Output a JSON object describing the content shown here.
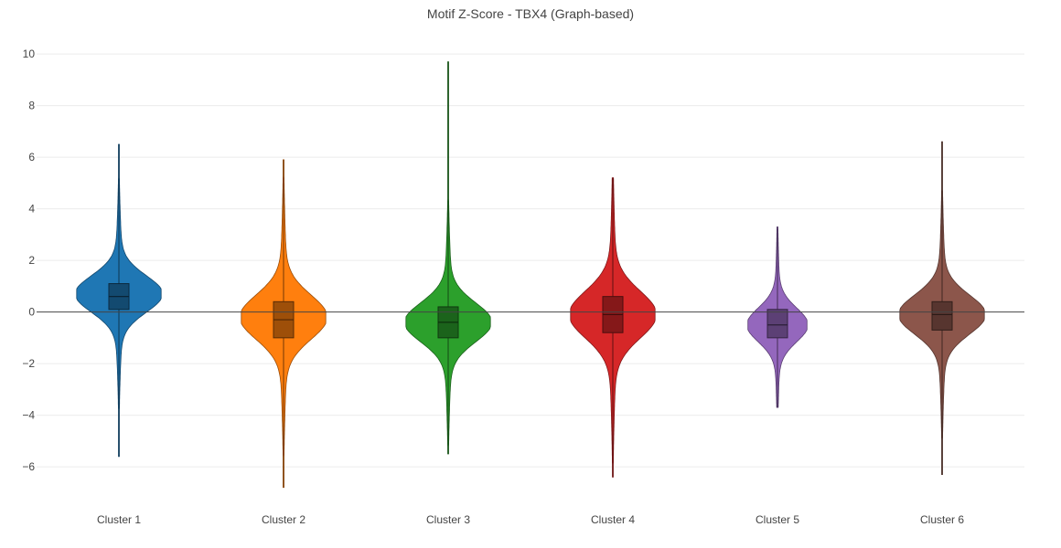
{
  "chart_data": {
    "type": "violin",
    "title": "Motif Z-Score - TBX4 (Graph-based)",
    "xlabel": "",
    "ylabel": "",
    "ylim": [
      -7.2,
      10.5
    ],
    "yticks": [
      -6,
      -4,
      -2,
      0,
      2,
      4,
      6,
      8,
      10
    ],
    "grid": true,
    "categories": [
      "Cluster 1",
      "Cluster 2",
      "Cluster 3",
      "Cluster 4",
      "Cluster 5",
      "Cluster 6"
    ],
    "series": [
      {
        "color": "#1f77b4",
        "min": -5.6,
        "q1": 0.1,
        "median": 0.6,
        "q3": 1.1,
        "max": 6.5,
        "mode": 0.7,
        "spread": 0.7,
        "width_scale": 1.0
      },
      {
        "color": "#ff7f0e",
        "min": -6.8,
        "q1": -1.0,
        "median": -0.3,
        "q3": 0.4,
        "max": 5.9,
        "mode": -0.2,
        "spread": 0.85,
        "width_scale": 1.0
      },
      {
        "color": "#2ca02c",
        "min": -5.5,
        "q1": -1.0,
        "median": -0.4,
        "q3": 0.2,
        "max": 9.7,
        "mode": -0.4,
        "spread": 0.75,
        "width_scale": 1.0
      },
      {
        "color": "#d62728",
        "min": -6.4,
        "q1": -0.8,
        "median": -0.1,
        "q3": 0.6,
        "max": 5.2,
        "mode": -0.1,
        "spread": 0.9,
        "width_scale": 1.0
      },
      {
        "color": "#9467bd",
        "min": -3.7,
        "q1": -1.0,
        "median": -0.5,
        "q3": 0.1,
        "max": 3.3,
        "mode": -0.5,
        "spread": 0.65,
        "width_scale": 0.7
      },
      {
        "color": "#8c564b",
        "min": -6.3,
        "q1": -0.7,
        "median": -0.1,
        "q3": 0.4,
        "max": 6.6,
        "mode": -0.1,
        "spread": 0.75,
        "width_scale": 1.0
      }
    ]
  }
}
